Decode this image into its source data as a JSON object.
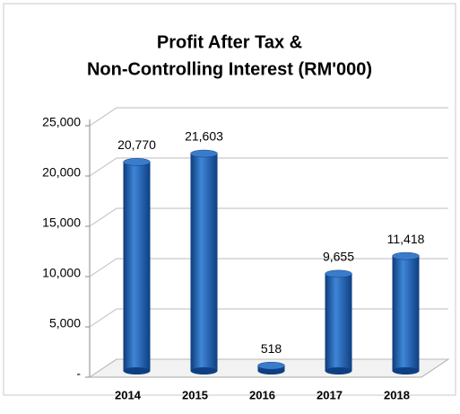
{
  "chart_data": {
    "type": "bar",
    "title": [
      "Profit After Tax &",
      "Non-Controlling Interest (RM'000)"
    ],
    "categories": [
      "2014",
      "2015",
      "2016",
      "2017",
      "2018"
    ],
    "values": [
      20770,
      21603,
      518,
      9655,
      11418
    ],
    "value_labels": [
      "20,770",
      "21,603",
      "518",
      "9,655",
      "11,418"
    ],
    "color": "#1f5fb0",
    "ylim": [
      0,
      25000
    ],
    "yticks": [
      {
        "value": 0,
        "label": "-"
      },
      {
        "value": 5000,
        "label": "5,000"
      },
      {
        "value": 10000,
        "label": "10,000"
      },
      {
        "value": 15000,
        "label": "15,000"
      },
      {
        "value": 20000,
        "label": "20,000"
      },
      {
        "value": 25000,
        "label": "25,000"
      }
    ],
    "grid": true
  }
}
